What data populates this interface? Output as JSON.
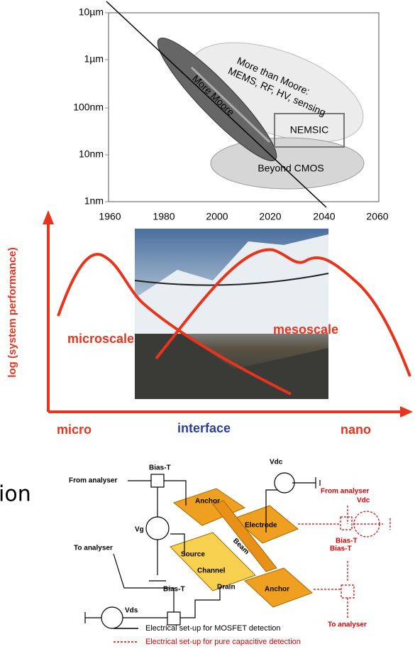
{
  "top_chart": {
    "yticks": [
      "10µm",
      "1µm",
      "100nm",
      "10nm",
      "1nm"
    ],
    "xticks": [
      1960,
      1980,
      2000,
      2020,
      2040,
      2060
    ],
    "more_than_moore": [
      "More than Moore:",
      "MEMS, RF, HV, sensing"
    ],
    "more_moore": "More Moore",
    "nemsic": "NEMSIC",
    "beyond_cmos": "Beyond CMOS"
  },
  "middle_chart": {
    "y_axis_label": "log (system performance)",
    "curve_labels": [
      "microscale",
      "mesoscale"
    ],
    "x_labels": [
      "micro",
      "interface",
      "nano"
    ]
  },
  "side_text": "ion",
  "circuit": {
    "labels": [
      "Vdc",
      "Bias-T",
      "From analyser",
      "Anchor",
      "Vg",
      "Electrode",
      "Beam",
      "Source",
      "Channel",
      "Drain",
      "Anchor",
      "To analyser",
      "Bias-T",
      "Vds"
    ],
    "capacitive_labels": [
      "From analyser",
      "Vdc",
      "Bias-T",
      "Bias-T",
      "To analyser"
    ],
    "legend": [
      "Electrical set-up for MOSFET detection",
      "Electrical set-up for pure capacitive detection"
    ]
  }
}
